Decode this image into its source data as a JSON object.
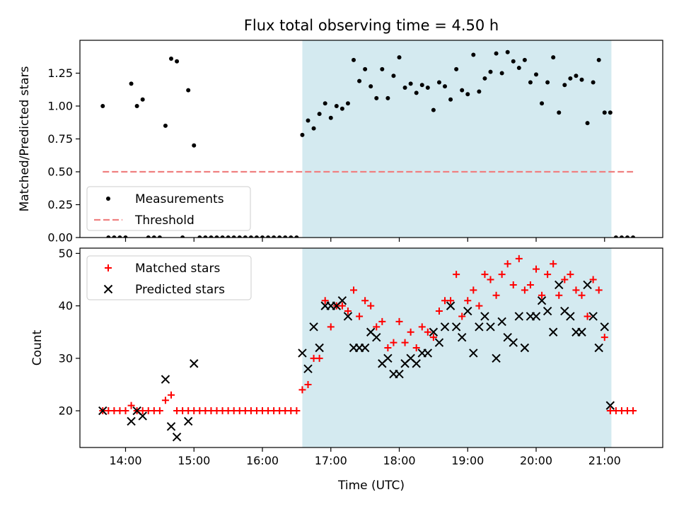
{
  "figure": {
    "title": "Flux total observing time = 4.50 h",
    "xlabel": "Time (UTC)"
  },
  "chart_data": [
    {
      "type": "scatter",
      "panel": "top",
      "ylabel": "Matched/Predicted stars",
      "xlim": [
        "13:20",
        "21:51"
      ],
      "ylim": [
        0,
        1.5
      ],
      "yticks": [
        0.0,
        0.25,
        0.5,
        0.75,
        1.0,
        1.25
      ],
      "ytick_labels": [
        "0.00",
        "0.25",
        "0.50",
        "0.75",
        "1.00",
        "1.25"
      ],
      "legend_position": "lower-left",
      "highlight_span": [
        "16:35",
        "21:06"
      ],
      "highlight_color": "#d4eaf0",
      "series": [
        {
          "name": "Measurements",
          "marker": "dot",
          "color": "#000000",
          "points": [
            [
              "13:40",
              1.0
            ],
            [
              "13:45",
              0
            ],
            [
              "13:50",
              0
            ],
            [
              "13:55",
              0
            ],
            [
              "14:00",
              0
            ],
            [
              "14:05",
              1.17
            ],
            [
              "14:10",
              1.0
            ],
            [
              "14:15",
              1.05
            ],
            [
              "14:20",
              0
            ],
            [
              "14:25",
              0
            ],
            [
              "14:30",
              0
            ],
            [
              "14:35",
              0.85
            ],
            [
              "14:40",
              1.36
            ],
            [
              "14:45",
              1.34
            ],
            [
              "14:50",
              0
            ],
            [
              "14:55",
              1.12
            ],
            [
              "15:00",
              0.7
            ],
            [
              "15:05",
              0
            ],
            [
              "15:10",
              0
            ],
            [
              "15:15",
              0
            ],
            [
              "15:20",
              0
            ],
            [
              "15:25",
              0
            ],
            [
              "15:30",
              0
            ],
            [
              "15:35",
              0
            ],
            [
              "15:40",
              0
            ],
            [
              "15:45",
              0
            ],
            [
              "15:50",
              0
            ],
            [
              "15:55",
              0
            ],
            [
              "16:00",
              0
            ],
            [
              "16:05",
              0
            ],
            [
              "16:10",
              0
            ],
            [
              "16:15",
              0
            ],
            [
              "16:20",
              0
            ],
            [
              "16:25",
              0
            ],
            [
              "16:30",
              0
            ],
            [
              "16:35",
              0.78
            ],
            [
              "16:40",
              0.89
            ],
            [
              "16:45",
              0.83
            ],
            [
              "16:50",
              0.94
            ],
            [
              "16:55",
              1.02
            ],
            [
              "17:00",
              0.91
            ],
            [
              "17:05",
              1.0
            ],
            [
              "17:10",
              0.98
            ],
            [
              "17:15",
              1.02
            ],
            [
              "17:20",
              1.35
            ],
            [
              "17:25",
              1.19
            ],
            [
              "17:30",
              1.28
            ],
            [
              "17:35",
              1.15
            ],
            [
              "17:40",
              1.06
            ],
            [
              "17:45",
              1.28
            ],
            [
              "17:50",
              1.06
            ],
            [
              "17:55",
              1.23
            ],
            [
              "18:00",
              1.37
            ],
            [
              "18:05",
              1.14
            ],
            [
              "18:10",
              1.17
            ],
            [
              "18:15",
              1.1
            ],
            [
              "18:20",
              1.16
            ],
            [
              "18:25",
              1.14
            ],
            [
              "18:30",
              0.97
            ],
            [
              "18:35",
              1.18
            ],
            [
              "18:40",
              1.15
            ],
            [
              "18:45",
              1.05
            ],
            [
              "18:50",
              1.28
            ],
            [
              "18:55",
              1.12
            ],
            [
              "19:00",
              1.09
            ],
            [
              "19:05",
              1.39
            ],
            [
              "19:10",
              1.11
            ],
            [
              "19:15",
              1.21
            ],
            [
              "19:20",
              1.26
            ],
            [
              "19:25",
              1.4
            ],
            [
              "19:30",
              1.25
            ],
            [
              "19:35",
              1.41
            ],
            [
              "19:40",
              1.34
            ],
            [
              "19:45",
              1.29
            ],
            [
              "19:50",
              1.35
            ],
            [
              "19:55",
              1.18
            ],
            [
              "20:00",
              1.24
            ],
            [
              "20:05",
              1.02
            ],
            [
              "20:10",
              1.18
            ],
            [
              "20:15",
              1.37
            ],
            [
              "20:20",
              0.95
            ],
            [
              "20:25",
              1.16
            ],
            [
              "20:30",
              1.21
            ],
            [
              "20:35",
              1.23
            ],
            [
              "20:40",
              1.2
            ],
            [
              "20:45",
              0.87
            ],
            [
              "20:50",
              1.18
            ],
            [
              "20:55",
              1.35
            ],
            [
              "21:00",
              0.95
            ],
            [
              "21:05",
              0.95
            ],
            [
              "21:10",
              0
            ],
            [
              "21:15",
              0
            ],
            [
              "21:20",
              0
            ],
            [
              "21:25",
              0
            ]
          ]
        },
        {
          "name": "Threshold",
          "marker": "dashed-line",
          "color": "#f08080",
          "points": [
            [
              "13:40",
              0.5
            ],
            [
              "21:25",
              0.5
            ]
          ]
        }
      ]
    },
    {
      "type": "scatter",
      "panel": "bottom",
      "ylabel": "Count",
      "xlim": [
        "13:20",
        "21:51"
      ],
      "ylim": [
        13,
        51
      ],
      "yticks": [
        20,
        30,
        40,
        50
      ],
      "ytick_labels": [
        "20",
        "30",
        "40",
        "50"
      ],
      "xticks": [
        "14:00",
        "15:00",
        "16:00",
        "17:00",
        "18:00",
        "19:00",
        "20:00",
        "21:00"
      ],
      "xtick_labels": [
        "14:00",
        "15:00",
        "16:00",
        "17:00",
        "18:00",
        "19:00",
        "20:00",
        "21:00"
      ],
      "legend_position": "upper-left",
      "highlight_span": [
        "16:35",
        "21:06"
      ],
      "highlight_color": "#d4eaf0",
      "series": [
        {
          "name": "Matched stars",
          "marker": "plus",
          "color": "#ff0000",
          "points": [
            [
              "13:40",
              20
            ],
            [
              "13:45",
              20
            ],
            [
              "13:50",
              20
            ],
            [
              "13:55",
              20
            ],
            [
              "14:00",
              20
            ],
            [
              "14:05",
              21
            ],
            [
              "14:10",
              20
            ],
            [
              "14:15",
              20
            ],
            [
              "14:20",
              20
            ],
            [
              "14:25",
              20
            ],
            [
              "14:30",
              20
            ],
            [
              "14:35",
              22
            ],
            [
              "14:40",
              23
            ],
            [
              "14:45",
              20
            ],
            [
              "14:50",
              20
            ],
            [
              "14:55",
              20
            ],
            [
              "15:00",
              20
            ],
            [
              "15:05",
              20
            ],
            [
              "15:10",
              20
            ],
            [
              "15:15",
              20
            ],
            [
              "15:20",
              20
            ],
            [
              "15:25",
              20
            ],
            [
              "15:30",
              20
            ],
            [
              "15:35",
              20
            ],
            [
              "15:40",
              20
            ],
            [
              "15:45",
              20
            ],
            [
              "15:50",
              20
            ],
            [
              "15:55",
              20
            ],
            [
              "16:00",
              20
            ],
            [
              "16:05",
              20
            ],
            [
              "16:10",
              20
            ],
            [
              "16:15",
              20
            ],
            [
              "16:20",
              20
            ],
            [
              "16:25",
              20
            ],
            [
              "16:30",
              20
            ],
            [
              "16:35",
              24
            ],
            [
              "16:40",
              25
            ],
            [
              "16:45",
              30
            ],
            [
              "16:50",
              30
            ],
            [
              "16:55",
              41
            ],
            [
              "17:00",
              36
            ],
            [
              "17:05",
              40
            ],
            [
              "17:10",
              40
            ],
            [
              "17:15",
              39
            ],
            [
              "17:20",
              43
            ],
            [
              "17:25",
              38
            ],
            [
              "17:30",
              41
            ],
            [
              "17:35",
              40
            ],
            [
              "17:40",
              36
            ],
            [
              "17:45",
              37
            ],
            [
              "17:50",
              32
            ],
            [
              "17:55",
              33
            ],
            [
              "18:00",
              37
            ],
            [
              "18:05",
              33
            ],
            [
              "18:10",
              35
            ],
            [
              "18:15",
              32
            ],
            [
              "18:20",
              36
            ],
            [
              "18:25",
              35
            ],
            [
              "18:30",
              34
            ],
            [
              "18:35",
              39
            ],
            [
              "18:40",
              41
            ],
            [
              "18:45",
              41
            ],
            [
              "18:50",
              46
            ],
            [
              "18:55",
              38
            ],
            [
              "19:00",
              41
            ],
            [
              "19:05",
              43
            ],
            [
              "19:10",
              40
            ],
            [
              "19:15",
              46
            ],
            [
              "19:20",
              45
            ],
            [
              "19:25",
              42
            ],
            [
              "19:30",
              46
            ],
            [
              "19:35",
              48
            ],
            [
              "19:40",
              44
            ],
            [
              "19:45",
              49
            ],
            [
              "19:50",
              43
            ],
            [
              "19:55",
              44
            ],
            [
              "20:00",
              47
            ],
            [
              "20:05",
              42
            ],
            [
              "20:10",
              46
            ],
            [
              "20:15",
              48
            ],
            [
              "20:20",
              42
            ],
            [
              "20:25",
              45
            ],
            [
              "20:30",
              46
            ],
            [
              "20:35",
              43
            ],
            [
              "20:40",
              42
            ],
            [
              "20:45",
              38
            ],
            [
              "20:50",
              45
            ],
            [
              "20:55",
              43
            ],
            [
              "21:00",
              34
            ],
            [
              "21:05",
              20
            ],
            [
              "21:10",
              20
            ],
            [
              "21:15",
              20
            ],
            [
              "21:20",
              20
            ],
            [
              "21:25",
              20
            ]
          ]
        },
        {
          "name": "Predicted stars",
          "marker": "x",
          "color": "#000000",
          "points": [
            [
              "13:40",
              20
            ],
            [
              "14:05",
              18
            ],
            [
              "14:10",
              20
            ],
            [
              "14:15",
              19
            ],
            [
              "14:35",
              26
            ],
            [
              "14:40",
              17
            ],
            [
              "14:45",
              15
            ],
            [
              "14:55",
              18
            ],
            [
              "15:00",
              29
            ],
            [
              "16:35",
              31
            ],
            [
              "16:40",
              28
            ],
            [
              "16:45",
              36
            ],
            [
              "16:50",
              32
            ],
            [
              "16:55",
              40
            ],
            [
              "17:00",
              40
            ],
            [
              "17:05",
              40
            ],
            [
              "17:10",
              41
            ],
            [
              "17:15",
              38
            ],
            [
              "17:20",
              32
            ],
            [
              "17:25",
              32
            ],
            [
              "17:30",
              32
            ],
            [
              "17:35",
              35
            ],
            [
              "17:40",
              34
            ],
            [
              "17:45",
              29
            ],
            [
              "17:50",
              30
            ],
            [
              "17:55",
              27
            ],
            [
              "18:00",
              27
            ],
            [
              "18:05",
              29
            ],
            [
              "18:10",
              30
            ],
            [
              "18:15",
              29
            ],
            [
              "18:20",
              31
            ],
            [
              "18:25",
              31
            ],
            [
              "18:30",
              35
            ],
            [
              "18:35",
              33
            ],
            [
              "18:40",
              36
            ],
            [
              "18:45",
              40
            ],
            [
              "18:50",
              36
            ],
            [
              "18:55",
              34
            ],
            [
              "19:00",
              39
            ],
            [
              "19:05",
              31
            ],
            [
              "19:10",
              36
            ],
            [
              "19:15",
              38
            ],
            [
              "19:20",
              36
            ],
            [
              "19:25",
              30
            ],
            [
              "19:30",
              37
            ],
            [
              "19:35",
              34
            ],
            [
              "19:40",
              33
            ],
            [
              "19:45",
              38
            ],
            [
              "19:50",
              32
            ],
            [
              "19:55",
              38
            ],
            [
              "20:00",
              38
            ],
            [
              "20:05",
              41
            ],
            [
              "20:10",
              39
            ],
            [
              "20:15",
              35
            ],
            [
              "20:20",
              44
            ],
            [
              "20:25",
              39
            ],
            [
              "20:30",
              38
            ],
            [
              "20:35",
              35
            ],
            [
              "20:40",
              35
            ],
            [
              "20:45",
              44
            ],
            [
              "20:50",
              38
            ],
            [
              "20:55",
              32
            ],
            [
              "21:00",
              36
            ],
            [
              "21:05",
              21
            ]
          ]
        }
      ]
    }
  ]
}
